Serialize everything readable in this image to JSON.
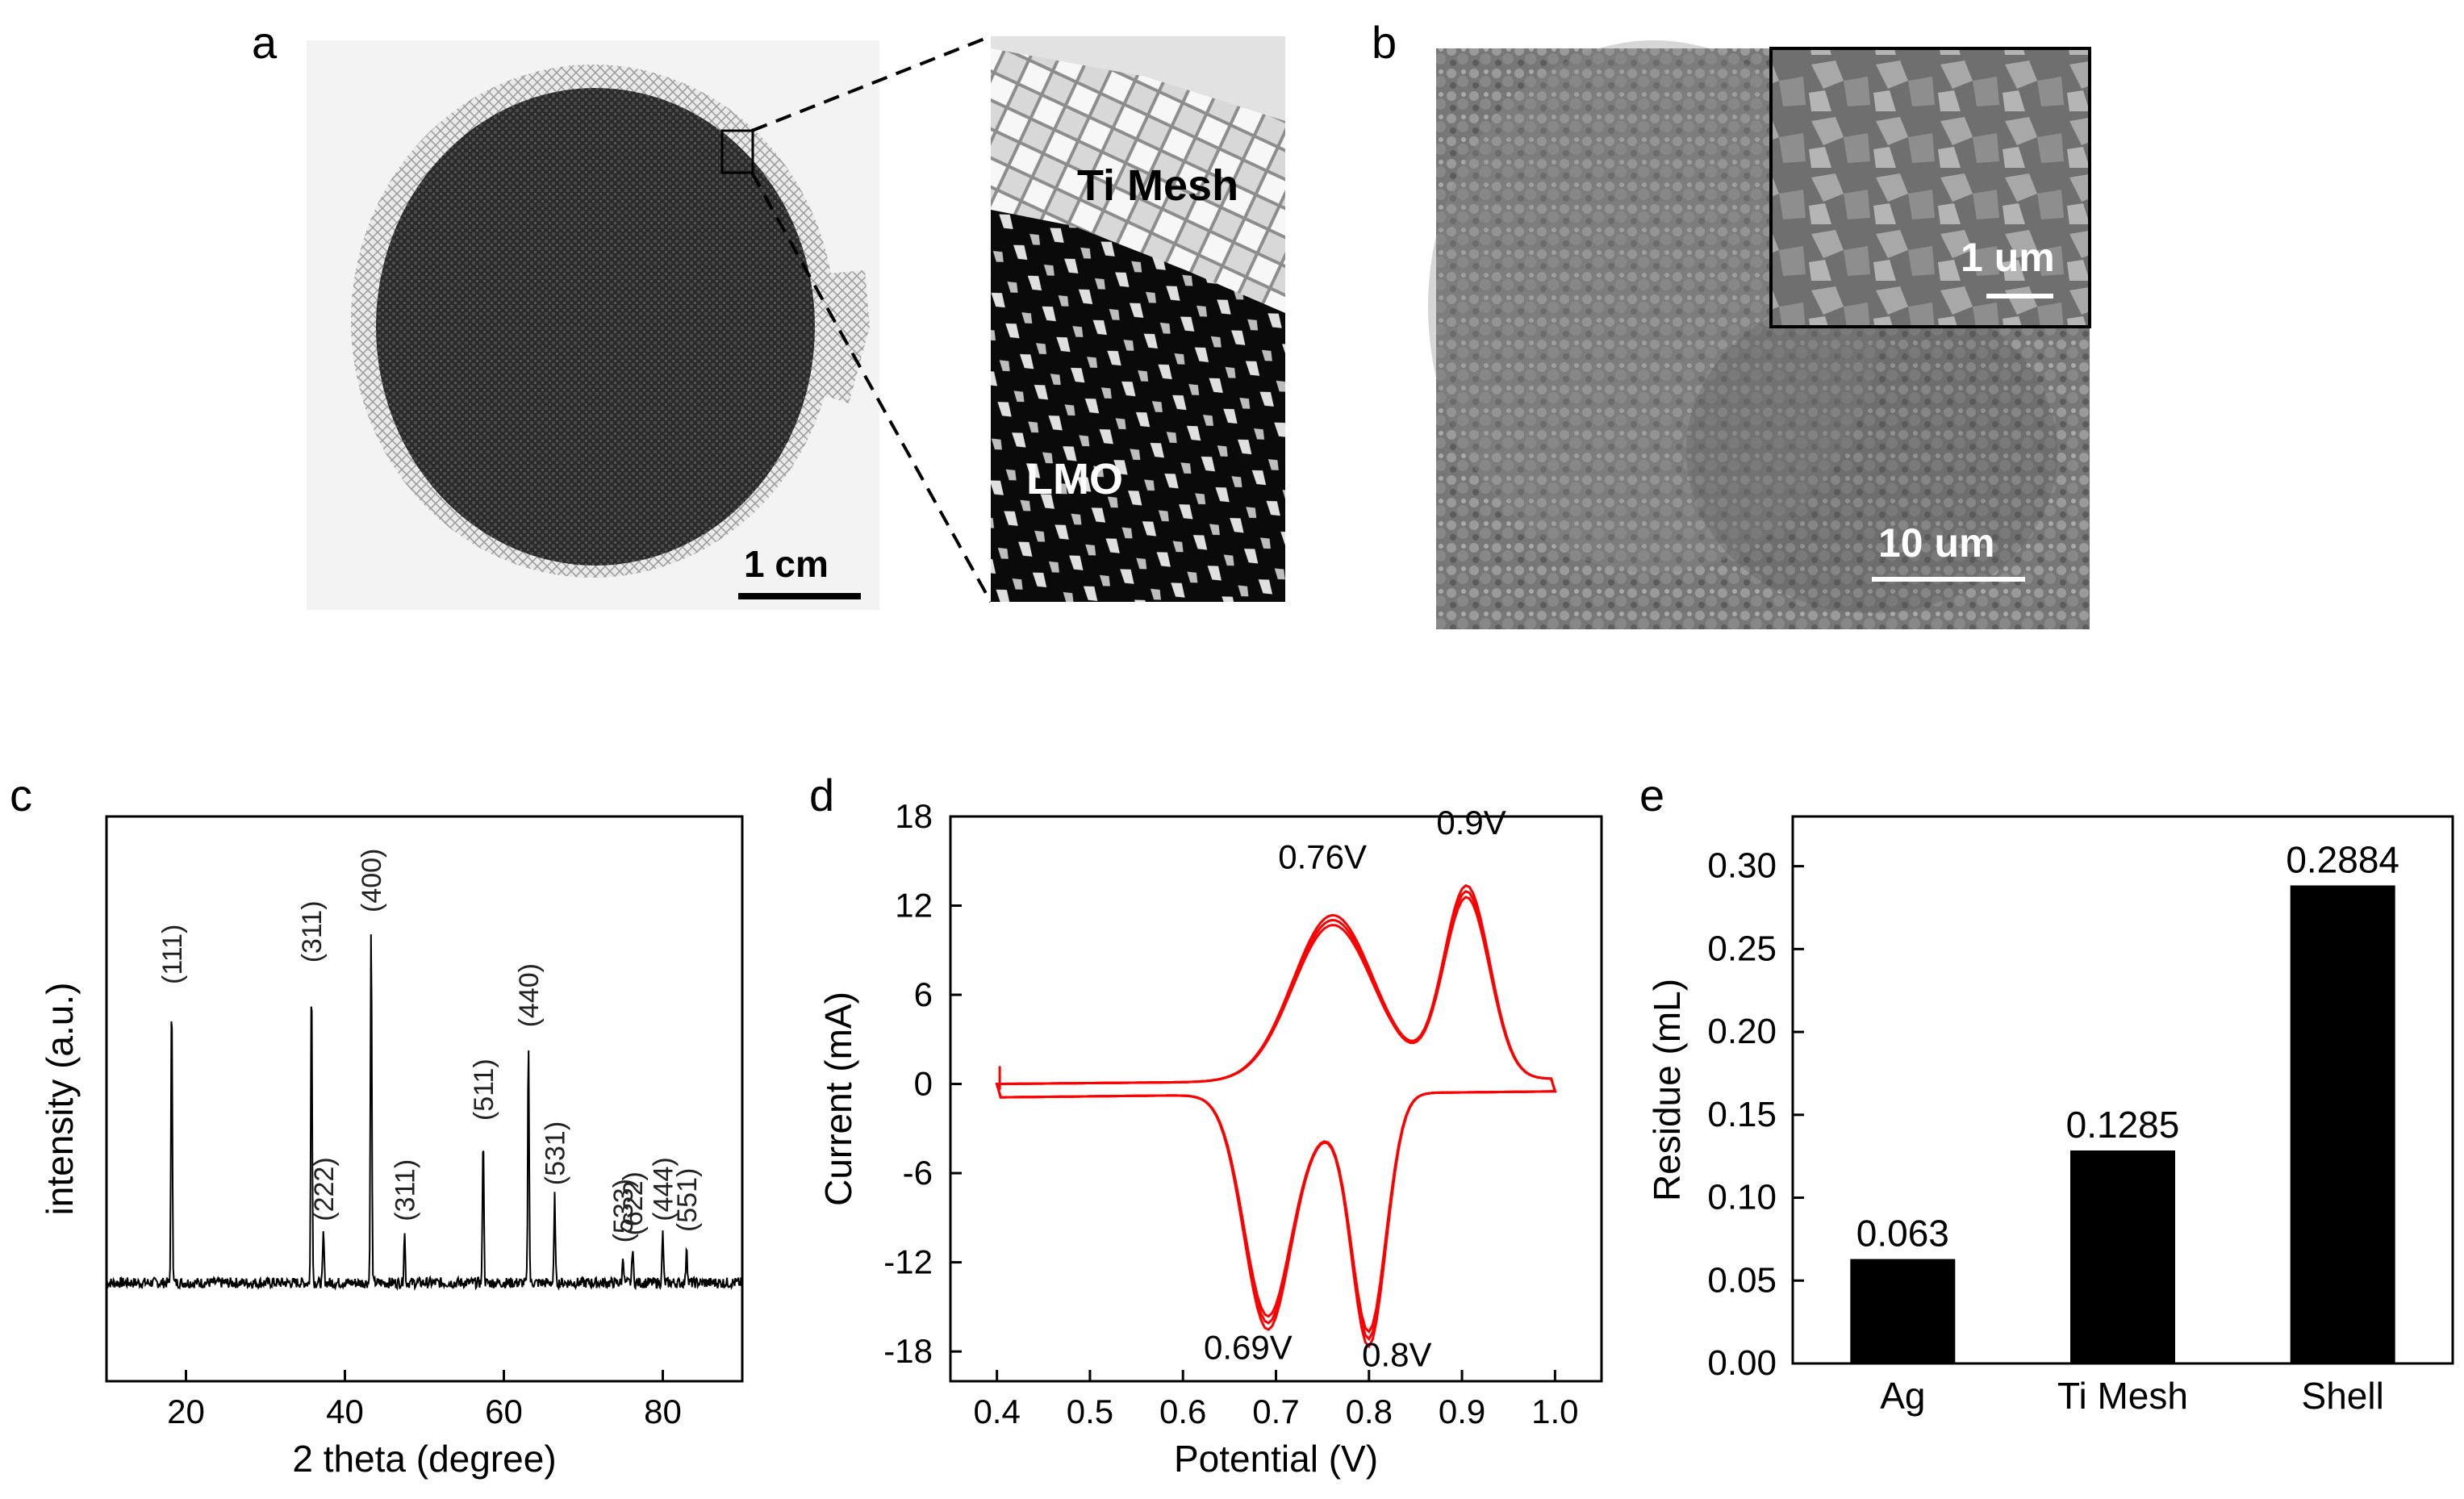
{
  "panels": {
    "a": {
      "letter": "a",
      "scale_bar": "1 cm",
      "zoom_labels": [
        "Ti Mesh",
        "LMO"
      ]
    },
    "b": {
      "letter": "b",
      "scale_bar_main": "10 um",
      "scale_bar_inset": "1 um"
    },
    "c": {
      "letter": "c"
    },
    "d": {
      "letter": "d"
    },
    "e": {
      "letter": "e"
    }
  },
  "chart_data": [
    {
      "id": "c",
      "type": "line",
      "xlabel": "2 theta (degree)",
      "ylabel": "intensity (a.u.)",
      "xlim": [
        10,
        90
      ],
      "xticks": [
        20,
        40,
        60,
        80
      ],
      "yticks_shown": false,
      "peaks": [
        {
          "x": 18.2,
          "h": 0.8,
          "label": "(111)"
        },
        {
          "x": 35.8,
          "h": 0.86,
          "label": "(311)"
        },
        {
          "x": 37.3,
          "h": 0.14,
          "label": "(222)"
        },
        {
          "x": 43.3,
          "h": 1.0,
          "label": "(400)"
        },
        {
          "x": 47.5,
          "h": 0.14,
          "label": "(311)"
        },
        {
          "x": 57.4,
          "h": 0.42,
          "label": "(511)"
        },
        {
          "x": 63.1,
          "h": 0.68,
          "label": "(440)"
        },
        {
          "x": 66.4,
          "h": 0.24,
          "label": "(531)"
        },
        {
          "x": 75.0,
          "h": 0.08,
          "label": "(533)"
        },
        {
          "x": 76.2,
          "h": 0.1,
          "label": "(622)"
        },
        {
          "x": 80.0,
          "h": 0.14,
          "label": "(444)"
        },
        {
          "x": 83.0,
          "h": 0.11,
          "label": "(551)"
        }
      ]
    },
    {
      "id": "d",
      "type": "line",
      "xlabel": "Potential (V)",
      "ylabel": "Current (mA)",
      "xlim": [
        0.35,
        1.05
      ],
      "ylim": [
        -20,
        18
      ],
      "xticks": [
        0.4,
        0.5,
        0.6,
        0.7,
        0.8,
        0.9,
        1.0
      ],
      "yticks": [
        -18,
        -12,
        -6,
        0,
        6,
        12,
        18
      ],
      "color": "#ff0000",
      "annotations": [
        {
          "text": "0.76V",
          "x": 0.75,
          "y": 14.5
        },
        {
          "text": "0.9V",
          "x": 0.91,
          "y": 16.8
        },
        {
          "text": "0.69V",
          "x": 0.67,
          "y": -18.5
        },
        {
          "text": "0.8V",
          "x": 0.83,
          "y": -19.0
        }
      ],
      "anodic_peaks": [
        {
          "x": 0.76,
          "y": 11.0
        },
        {
          "x": 0.905,
          "y": 13.0
        }
      ],
      "cathodic_peaks": [
        {
          "x": 0.69,
          "y": -15.0
        },
        {
          "x": 0.8,
          "y": -16.5
        }
      ]
    },
    {
      "id": "e",
      "type": "bar",
      "categories": [
        "Ag",
        "Ti Mesh",
        "Shell"
      ],
      "values": [
        0.063,
        0.1285,
        0.2884
      ],
      "value_labels": [
        "0.063",
        "0.1285",
        "0.2884"
      ],
      "ylabel": "Residue (mL)",
      "ylim": [
        0,
        0.33
      ],
      "yticks": [
        "0.00",
        "0.05",
        "0.10",
        "0.15",
        "0.20",
        "0.25",
        "0.30"
      ],
      "color": "#000000"
    }
  ]
}
